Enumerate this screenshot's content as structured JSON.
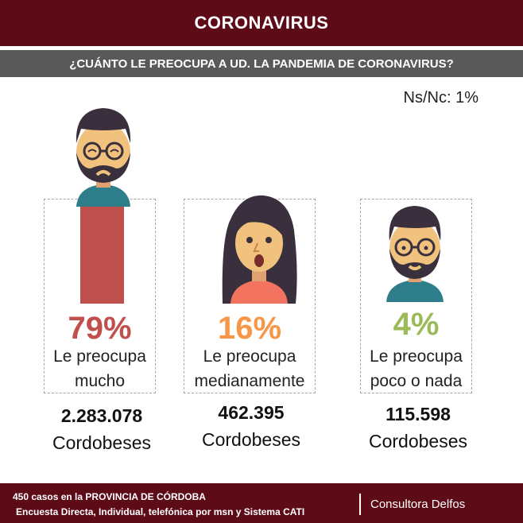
{
  "header": {
    "title": "CORONAVIRUS"
  },
  "question": "¿CUÁNTO LE PREOCUPA A UD. LA PANDEMIA DE CORONAVIRUS?",
  "nsnc": "Ns/Nc: 1%",
  "chart_data": {
    "type": "bar",
    "title": "¿CUÁNTO LE PREOCUPA A UD. LA PANDEMIA DE CORONAVIRUS?",
    "categories": [
      "Le preocupa mucho",
      "Le preocupa medianamente",
      "Le preocupa poco o nada"
    ],
    "values": [
      79,
      16,
      4
    ],
    "value_labels": [
      "79%",
      "16%",
      "4%"
    ],
    "counts": [
      "2.283.078",
      "462.395",
      "115.598"
    ],
    "count_unit": "Cordobeses",
    "colors": [
      "#c0504d",
      "#f79646",
      "#9bbb59"
    ],
    "ylim": [
      0,
      100
    ]
  },
  "cards": [
    {
      "pct": "79%",
      "label_1": "Le preocupa",
      "label_2": "mucho",
      "count": "2.283.078",
      "unit": "Cordobeses",
      "color": "#c0504d"
    },
    {
      "pct": "16%",
      "label_1": "Le preocupa",
      "label_2": "medianamente",
      "count": "462.395",
      "unit": "Cordobeses",
      "color": "#f79646"
    },
    {
      "pct": "4%",
      "label_1": "Le preocupa",
      "label_2": "poco o nada",
      "count": "115.598",
      "unit": "Cordobeses",
      "color": "#9bbb59"
    }
  ],
  "footer": {
    "line1": "450  casos en la PROVINCIA DE CÓRDOBA",
    "line2": "Encuesta Directa, Individual, telefónica por msn y Sistema CATI",
    "brand": "Consultora Delfos"
  },
  "icons": [
    "worried-man-icon",
    "surprised-woman-icon",
    "calm-man-icon"
  ]
}
